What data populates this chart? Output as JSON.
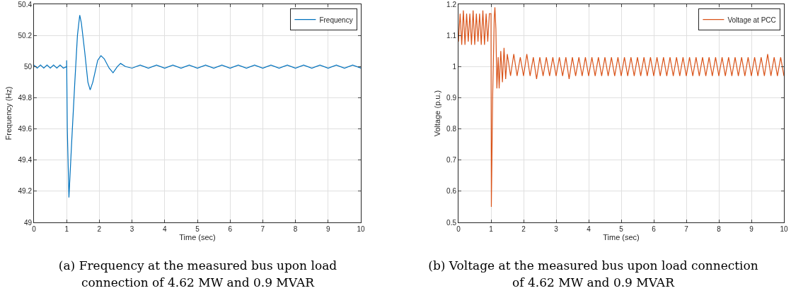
{
  "chart_data": [
    {
      "type": "line",
      "xlabel": "Time (sec)",
      "ylabel": "Frequency (Hz)",
      "xlim": [
        0,
        10
      ],
      "ylim": [
        49,
        50.4
      ],
      "xticks": [
        0,
        1,
        2,
        3,
        4,
        5,
        6,
        7,
        8,
        9,
        10
      ],
      "yticks": [
        49,
        49.2,
        49.4,
        49.6,
        49.8,
        50,
        50.2,
        50.4
      ],
      "grid": true,
      "legend": "top right",
      "marker": "none",
      "line_style": "solid",
      "annotations": [
        "(a) Frequency at the measured bus upon load connection of 4.62 MW and 0.9 MVAR"
      ],
      "series": [
        {
          "name": "Frequency",
          "color": "#0072bd",
          "x": [
            0,
            0.1,
            0.2,
            0.3,
            0.4,
            0.5,
            0.6,
            0.7,
            0.8,
            0.9,
            1.0,
            1.0,
            1.02,
            1.07,
            1.15,
            1.25,
            1.33,
            1.4,
            1.45,
            1.55,
            1.65,
            1.72,
            1.8,
            1.95,
            2.05,
            2.15,
            2.3,
            2.42,
            2.55,
            2.65,
            2.8,
            3.0,
            3.25,
            3.5,
            3.75,
            4.0,
            4.25,
            4.5,
            4.75,
            5.0,
            5.25,
            5.5,
            5.75,
            6.0,
            6.25,
            6.5,
            6.75,
            7.0,
            7.25,
            7.5,
            7.75,
            8.0,
            8.25,
            8.5,
            8.75,
            9.0,
            9.25,
            9.5,
            9.75,
            10.0
          ],
          "values": [
            50.01,
            49.99,
            50.01,
            49.99,
            50.01,
            49.99,
            50.01,
            49.99,
            50.01,
            49.99,
            50.0,
            50.04,
            49.6,
            49.16,
            49.5,
            49.9,
            50.2,
            50.33,
            50.28,
            50.1,
            49.9,
            49.85,
            49.9,
            50.04,
            50.07,
            50.05,
            49.99,
            49.96,
            50.0,
            50.02,
            50.0,
            49.99,
            50.01,
            49.99,
            50.01,
            49.99,
            50.01,
            49.99,
            50.01,
            49.99,
            50.01,
            49.99,
            50.01,
            49.99,
            50.01,
            49.99,
            50.01,
            49.99,
            50.01,
            49.99,
            50.01,
            49.99,
            50.01,
            49.99,
            50.01,
            49.99,
            50.01,
            49.99,
            50.01,
            49.99
          ]
        }
      ]
    },
    {
      "type": "line",
      "xlabel": "Time (sec)",
      "ylabel": "Voltage (p.u.)",
      "xlim": [
        0,
        10
      ],
      "ylim": [
        0.5,
        1.2
      ],
      "xticks": [
        0,
        1,
        2,
        3,
        4,
        5,
        6,
        7,
        8,
        9,
        10
      ],
      "yticks": [
        0.5,
        0.6,
        0.7,
        0.8,
        0.9,
        1,
        1.1,
        1.2
      ],
      "grid": true,
      "legend": "top right",
      "marker": "none",
      "line_style": "solid",
      "annotations": [
        "(b) Voltage at the measured bus upon load connection of 4.62 MW and 0.9 MVAR"
      ],
      "series": [
        {
          "name": "Voltage at PCC",
          "color": "#d95319",
          "x": [
            0,
            0.05,
            0.1,
            0.15,
            0.2,
            0.25,
            0.3,
            0.35,
            0.4,
            0.45,
            0.5,
            0.55,
            0.6,
            0.65,
            0.7,
            0.75,
            0.8,
            0.85,
            0.9,
            0.95,
            1.0,
            1.01,
            1.05,
            1.1,
            1.12,
            1.15,
            1.18,
            1.22,
            1.25,
            1.3,
            1.35,
            1.4,
            1.45,
            1.5,
            1.6,
            1.7,
            1.8,
            1.9,
            2.0,
            2.1,
            2.2,
            2.3,
            2.4,
            2.5,
            2.6,
            2.7,
            2.8,
            2.9,
            3.0,
            3.1,
            3.2,
            3.3,
            3.4,
            3.5,
            3.6,
            3.7,
            3.8,
            3.9,
            4.0,
            4.1,
            4.2,
            4.3,
            4.4,
            4.5,
            4.6,
            4.7,
            4.8,
            4.9,
            5.0,
            5.1,
            5.2,
            5.3,
            5.4,
            5.5,
            5.6,
            5.7,
            5.8,
            5.9,
            6.0,
            6.1,
            6.2,
            6.3,
            6.4,
            6.5,
            6.6,
            6.7,
            6.8,
            6.9,
            7.0,
            7.1,
            7.2,
            7.3,
            7.4,
            7.5,
            7.6,
            7.7,
            7.8,
            7.9,
            8.0,
            8.1,
            8.2,
            8.3,
            8.4,
            8.5,
            8.6,
            8.7,
            8.8,
            8.9,
            9.0,
            9.1,
            9.2,
            9.3,
            9.4,
            9.5,
            9.6,
            9.7,
            9.8,
            9.9,
            10.0
          ],
          "values": [
            1.08,
            1.17,
            1.07,
            1.18,
            1.07,
            1.17,
            1.08,
            1.17,
            1.07,
            1.18,
            1.07,
            1.17,
            1.08,
            1.17,
            1.07,
            1.18,
            1.07,
            1.17,
            1.08,
            1.17,
            1.17,
            0.55,
            0.9,
            1.16,
            1.19,
            1.12,
            0.93,
            1.03,
            0.93,
            1.05,
            0.95,
            1.06,
            0.96,
            1.04,
            0.97,
            1.04,
            0.97,
            1.03,
            0.97,
            1.04,
            0.97,
            1.03,
            0.96,
            1.03,
            0.97,
            1.03,
            0.97,
            1.03,
            0.97,
            1.03,
            0.97,
            1.03,
            0.96,
            1.03,
            0.97,
            1.03,
            0.97,
            1.03,
            0.97,
            1.03,
            0.97,
            1.03,
            0.97,
            1.03,
            0.97,
            1.03,
            0.97,
            1.03,
            0.97,
            1.03,
            0.97,
            1.03,
            0.97,
            1.03,
            0.97,
            1.03,
            0.97,
            1.03,
            0.97,
            1.03,
            0.97,
            1.03,
            0.97,
            1.03,
            0.97,
            1.03,
            0.97,
            1.03,
            0.97,
            1.03,
            0.97,
            1.03,
            0.97,
            1.03,
            0.97,
            1.03,
            0.97,
            1.03,
            0.97,
            1.03,
            0.97,
            1.03,
            0.97,
            1.03,
            0.97,
            1.03,
            0.97,
            1.03,
            0.97,
            1.03,
            0.97,
            1.03,
            0.97,
            1.04,
            0.97,
            1.03,
            0.97,
            1.03,
            0.97
          ]
        }
      ]
    }
  ]
}
